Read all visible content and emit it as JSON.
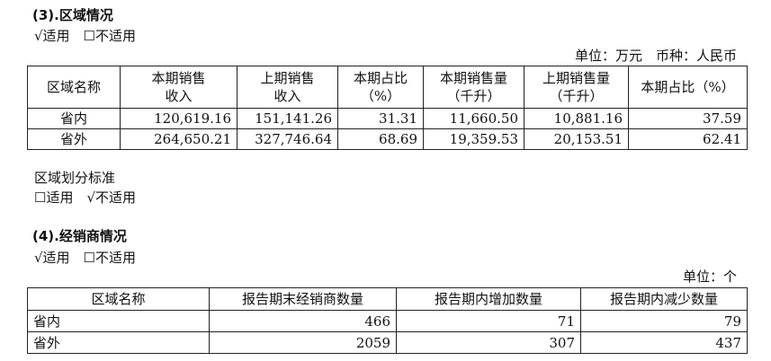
{
  "section3": {
    "title": "(3).区域情况",
    "applicability": "√适用　☐不适用",
    "unit_line": "单位：万元　币种：人民币",
    "headers": [
      "区域名称",
      "本期销售\n收入",
      "上期销售\n收入",
      "本期占比\n（%）",
      "本期销售量\n（千升）",
      "上期销售量\n（千升）",
      "本期占比（%）"
    ],
    "rows": [
      [
        "省内",
        "120,619.16",
        "151,141.26",
        "31.31",
        "11,660.50",
        "10,881.16",
        "37.59"
      ],
      [
        "省外",
        "264,650.21",
        "327,746.64",
        "68.69",
        "19,359.53",
        "20,153.51",
        "62.41"
      ]
    ]
  },
  "region_standard": {
    "label": "区域划分标准",
    "applicability": "☐适用　√不适用"
  },
  "section4": {
    "title": "(4).经销商情况",
    "applicability": "√适用　☐不适用",
    "unit_line": "单位：个",
    "headers": [
      "区域名称",
      "报告期末经销商数量",
      "报告期内增加数量",
      "报告期内减少数量"
    ],
    "rows": [
      [
        "省内",
        "466",
        "71",
        "79"
      ],
      [
        "省外",
        "2059",
        "307",
        "437"
      ]
    ]
  }
}
